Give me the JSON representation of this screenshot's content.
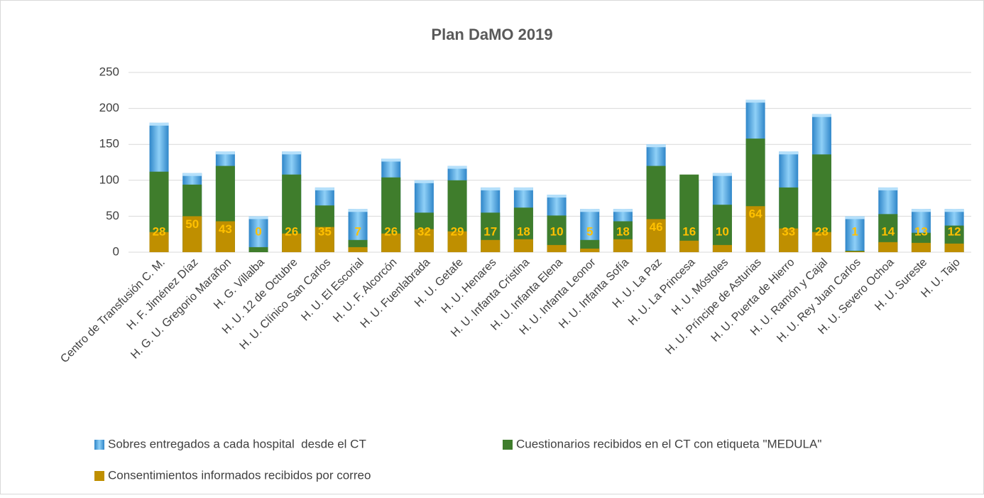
{
  "chart_data": {
    "type": "bar",
    "title": "Plan DaMO 2019",
    "categories": [
      "Centro de Transfusión C. M.",
      "H. F. Jiménez Díaz",
      "H. G. U. Gregorio Marañon",
      "H. G. Villalba",
      "H. U. 12 de Octubre",
      "H. U. Clínico San Carlos",
      "H. U. El Escorial",
      "H. U. F. Alcorcón",
      "H. U. Fuenlabrada",
      "H. U. Getafe",
      "H. U. Henares",
      "H. U. Infanta Cristina",
      "H. U. Infanta Elena",
      "H. U. Infanta Leonor",
      "H. U. Infanta Sofía",
      "H. U. La Paz",
      "H. U. La Princesa",
      "H. U. Móstoles",
      "H. U. Príncipe de Asturias",
      "H. U. Puerta de Hierro",
      "H. U. Ramón y Cajal",
      "H. U. Rey Juan Carlos",
      "H. U. Severo Ochoa",
      "H. U. Sureste",
      "H. U. Tajo"
    ],
    "series": [
      {
        "name": "Sobres entregados a cada hospital  desde el CT",
        "color": "#4aa3e0",
        "values": [
          180,
          110,
          140,
          50,
          140,
          90,
          60,
          130,
          100,
          120,
          90,
          90,
          80,
          60,
          60,
          150,
          100,
          110,
          212,
          140,
          192,
          50,
          90,
          60,
          60
        ]
      },
      {
        "name": "Cuestionarios recibidos en el CT con etiqueta \"MEDULA\"",
        "color": "#3f7d2c",
        "values": [
          112,
          94,
          120,
          7,
          108,
          65,
          17,
          104,
          55,
          100,
          55,
          62,
          51,
          17,
          43,
          120,
          108,
          66,
          158,
          90,
          136,
          2,
          53,
          27,
          37
        ]
      },
      {
        "name": "Consentimientos informados recibidos por correo",
        "color": "#bf8f00",
        "data_labels": true,
        "values": [
          28,
          50,
          43,
          0,
          26,
          35,
          7,
          26,
          32,
          29,
          17,
          18,
          10,
          5,
          18,
          46,
          16,
          10,
          64,
          33,
          28,
          1,
          14,
          13,
          12
        ]
      }
    ],
    "ylim": [
      0,
      250
    ],
    "yticks": [
      0,
      50,
      100,
      150,
      200,
      250
    ],
    "grid": true,
    "legend": "bottom"
  }
}
